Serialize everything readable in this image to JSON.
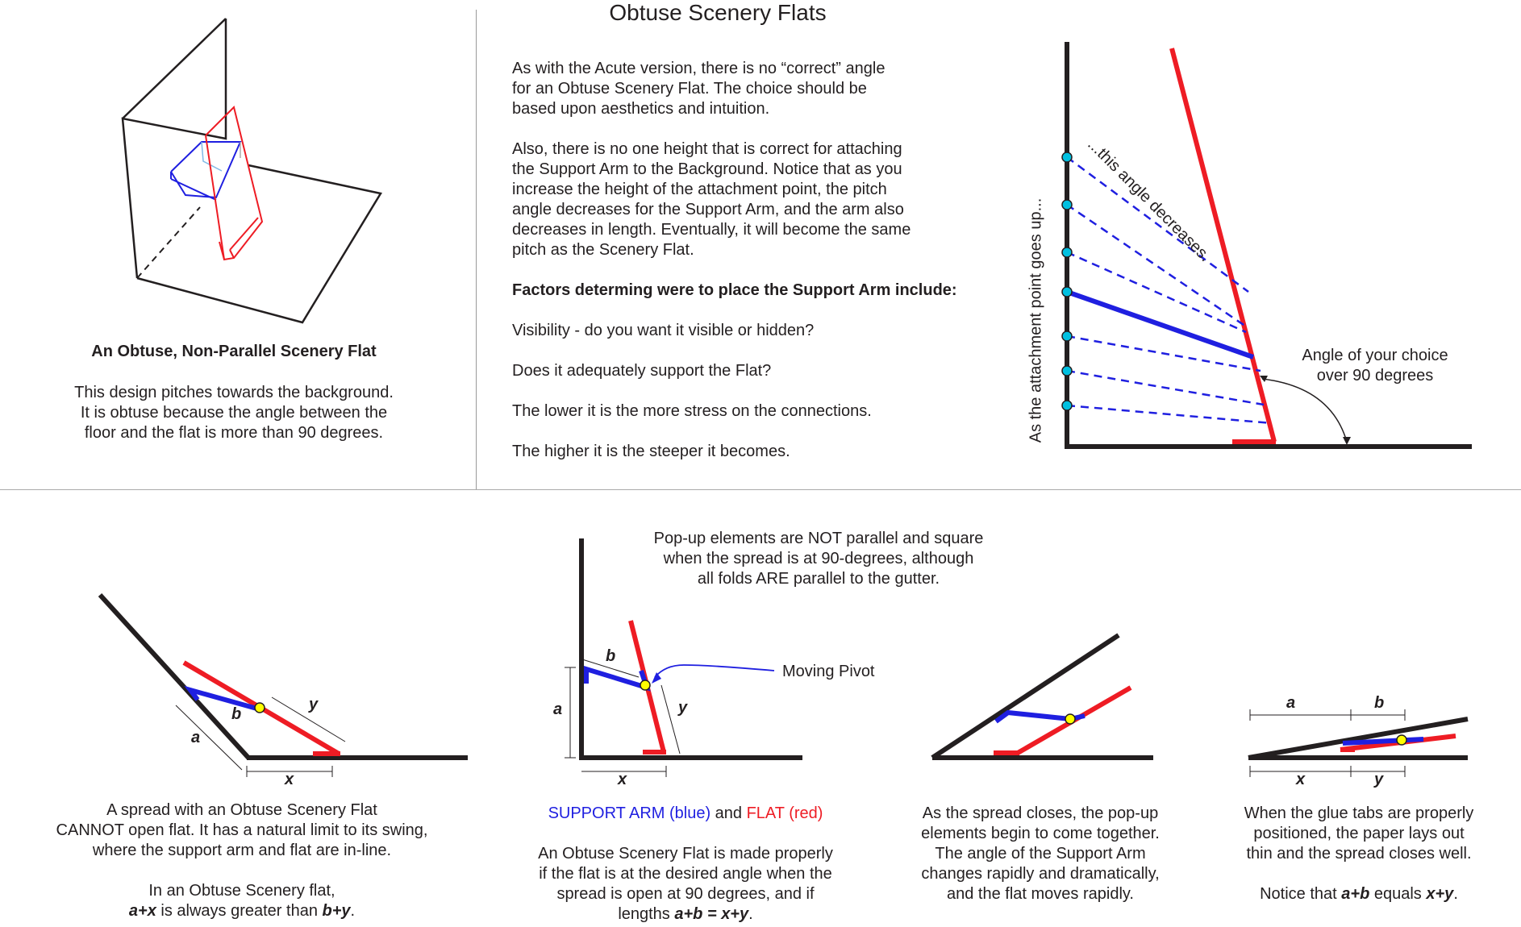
{
  "title": "Obtuse Scenery Flats",
  "left_panel": {
    "caption_title": "An Obtuse, Non-Parallel Scenery Flat",
    "caption_lines": [
      "This design pitches towards the background.",
      "It is obtuse because the angle between the",
      "floor and the flat is more than 90 degrees."
    ]
  },
  "middle_text": {
    "para1": [
      "As with the Acute version, there is no “correct” angle",
      "for an Obtuse Scenery Flat.  The choice should be",
      "based upon aesthetics and intuition."
    ],
    "para2": [
      "Also, there is no one height that is correct for attaching",
      "the Support Arm to the Background. Notice that as you",
      "increase the height of the attachment point, the pitch",
      "angle decreases for the Support Arm, and the arm also",
      "decreases in length. Eventually, it will become the same",
      "pitch as the Scenery Flat."
    ],
    "factors_heading": "Factors determing were to place the Support Arm include:",
    "factors": [
      "Visibility - do you want it visible or hidden?",
      "Does it adequately support the Flat?",
      "The lower it is the more stress on the connections.",
      "The higher it is the steeper it becomes."
    ]
  },
  "right_diagram": {
    "vertical_label": "As the attachment point goes up...",
    "angle_label": "...this angle decreases.",
    "choice_label": [
      "Angle of your choice",
      "over 90 degrees"
    ]
  },
  "bottom": {
    "center_note": [
      "Pop-up elements are NOT parallel and square",
      "when the spread is at 90-degrees, although",
      "all folds ARE parallel to the gutter."
    ],
    "moving_pivot": "Moving Pivot",
    "labels": {
      "a": "a",
      "b": "b",
      "x": "x",
      "y": "y"
    },
    "panel1": {
      "lines": [
        "A spread with an Obtuse Scenery Flat",
        "CANNOT open flat. It has a natural limit to its swing,",
        "where the support arm and flat are in-line."
      ],
      "line4": "In an Obtuse Scenery flat,",
      "formula_a": "a+x",
      "formula_mid": " is always greater than ",
      "formula_b": "b+y",
      "formula_end": "."
    },
    "panel2": {
      "legend_blue": "SUPPORT ARM (blue)",
      "legend_and": " and ",
      "legend_red": "FLAT (red)",
      "lines": [
        "An Obtuse Scenery Flat is made properly",
        "if the flat is at the desired angle when the",
        "spread is open at 90 degrees, and if"
      ],
      "last_prefix": "lengths ",
      "formula": "a+b = x+y",
      "last_suffix": "."
    },
    "panel3": {
      "lines": [
        "As the spread closes, the pop-up",
        "elements begin to come together.",
        "The angle of the Support Arm",
        "changes rapidly and dramatically,",
        "and the flat moves rapidly."
      ]
    },
    "panel4": {
      "lines": [
        "When the glue tabs are properly",
        "positioned, the paper lays out",
        "thin and the spread closes well."
      ],
      "notice_prefix": "Notice that ",
      "formula_a": "a+b",
      "notice_mid": " equals ",
      "formula_b": "x+y",
      "notice_end": "."
    }
  },
  "colors": {
    "blue": "#1f1fe0",
    "red": "#ee1c24",
    "black": "#231f20",
    "pivot": "#ffff00",
    "node": "#00c0e0"
  }
}
